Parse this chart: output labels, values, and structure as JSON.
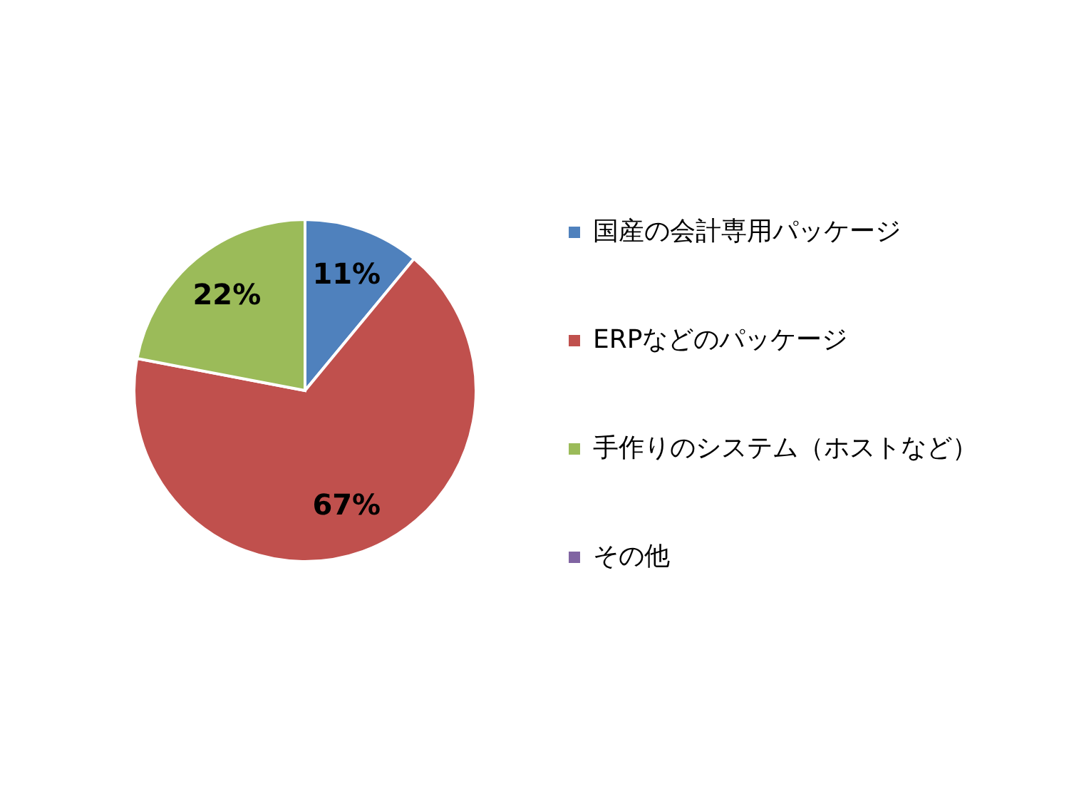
{
  "chart_data": {
    "type": "pie",
    "categories": [
      "国産の会計専用パッケージ",
      "ERPなどのパッケージ",
      "手作りのシステム（ホストなど）",
      "その他"
    ],
    "values": [
      11,
      67,
      22,
      0
    ],
    "colors": [
      "#4f81bd",
      "#c0504d",
      "#9bbb59",
      "#8064a2"
    ],
    "value_labels": [
      "11%",
      "67%",
      "22%",
      null
    ],
    "legend": "right"
  }
}
